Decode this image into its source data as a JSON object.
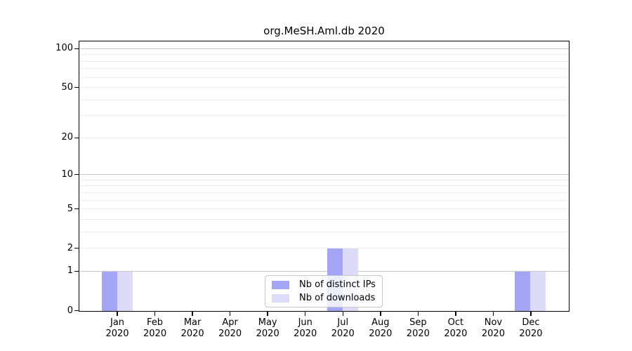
{
  "title": "org.MeSH.Aml.db 2020",
  "chart_data": {
    "type": "bar",
    "title": "org.MeSH.Aml.db 2020",
    "xlabel": "",
    "ylabel": "",
    "scale": "log1p",
    "ylim": [
      0,
      113
    ],
    "grid": "horizontal",
    "legend_position": "bottom-center",
    "categories": [
      {
        "month": "Jan",
        "year": "2020"
      },
      {
        "month": "Feb",
        "year": "2020"
      },
      {
        "month": "Mar",
        "year": "2020"
      },
      {
        "month": "Apr",
        "year": "2020"
      },
      {
        "month": "May",
        "year": "2020"
      },
      {
        "month": "Jun",
        "year": "2020"
      },
      {
        "month": "Jul",
        "year": "2020"
      },
      {
        "month": "Aug",
        "year": "2020"
      },
      {
        "month": "Sep",
        "year": "2020"
      },
      {
        "month": "Oct",
        "year": "2020"
      },
      {
        "month": "Nov",
        "year": "2020"
      },
      {
        "month": "Dec",
        "year": "2020"
      }
    ],
    "series": [
      {
        "name": "Nb of distinct IPs",
        "color": "#a5a5f5",
        "values": [
          1,
          0,
          0,
          0,
          0,
          0,
          2,
          0,
          0,
          0,
          0,
          1
        ]
      },
      {
        "name": "Nb of downloads",
        "color": "#dcdcf8",
        "values": [
          1,
          0,
          0,
          0,
          0,
          0,
          2,
          0,
          0,
          0,
          0,
          1
        ]
      }
    ],
    "yticks": [
      0,
      1,
      2,
      5,
      10,
      20,
      50,
      100
    ],
    "gridlines_major": [
      1,
      10,
      100
    ],
    "gridlines_minor": [
      2,
      3,
      4,
      5,
      6,
      7,
      8,
      9,
      20,
      30,
      40,
      50,
      60,
      70,
      80,
      90
    ]
  },
  "colors": {
    "axis": "#000000",
    "grid_major": "#c9c9c9",
    "grid_minor": "#ededed",
    "legend_border": "#c9c9c9",
    "background": "#ffffff"
  }
}
